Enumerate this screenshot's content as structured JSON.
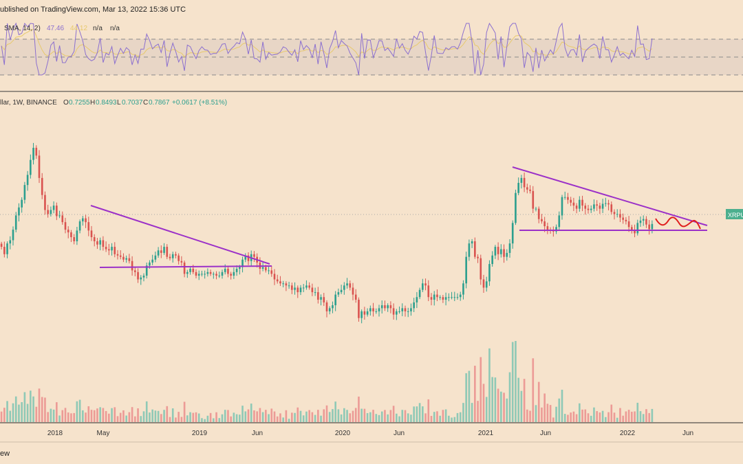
{
  "header": {
    "published": "ublished on TradingView.com, Mar 13, 2022 15:36 UTC",
    "footer": "ew"
  },
  "rsi": {
    "label_prefix": "SMA, 14, 2)",
    "value": "47.46",
    "sma_value": "44.12",
    "na1": "n/a",
    "na2": "n/a",
    "line_color": "#8b6fcf",
    "sma_color": "#e7c96d"
  },
  "price_legend": {
    "symbol": "llar, 1W, BINANCE",
    "open_label": "O",
    "open": "0.7255",
    "high_label": "H",
    "high": "0.8493",
    "low_label": "L",
    "low": "0.7037",
    "close_label": "C",
    "close": "0.7867",
    "change": "+0.0617 (+8.51%)",
    "badge": "XRPU"
  },
  "colors": {
    "background": "#f6e3cc",
    "bull": "#2c9f8e",
    "bear": "#d9534f",
    "trendline": "#9b30c8",
    "projection": "#e01e1e",
    "bull_volume": "#8fc9b6",
    "bear_volume": "#ec9b96"
  },
  "x_axis": [
    "2018",
    "May",
    "2019",
    "Jun",
    "2020",
    "Jun",
    "2021",
    "Jun",
    "2022",
    "Jun"
  ],
  "chart_data": {
    "type": "candlestick",
    "symbol": "XRP/USD",
    "timeframe": "1W",
    "exchange": "BINANCE",
    "x_ticks": [
      "2018",
      "May",
      "2019",
      "Jun",
      "2020",
      "Jun",
      "2021",
      "Jun",
      "2022",
      "Jun"
    ],
    "last_bar": {
      "open": 0.7255,
      "high": 0.8493,
      "low": 0.7037,
      "close": 0.7867,
      "change": 0.0617,
      "change_pct": 8.51
    },
    "rsi": {
      "length": 14,
      "value": 47.46,
      "sma": 44.12
    },
    "candle_closes": [
      0.55,
      0.49,
      0.58,
      0.61,
      0.72,
      0.9,
      1.02,
      1.15,
      1.45,
      1.7,
      2.15,
      2.6,
      2.3,
      1.62,
      1.24,
      0.98,
      0.92,
      0.98,
      1.05,
      0.89,
      0.9,
      0.81,
      0.72,
      0.69,
      0.64,
      0.6,
      0.71,
      0.82,
      0.86,
      0.81,
      0.71,
      0.64,
      0.6,
      0.57,
      0.61,
      0.55,
      0.53,
      0.52,
      0.55,
      0.49,
      0.48,
      0.47,
      0.45,
      0.46,
      0.44,
      0.38,
      0.37,
      0.33,
      0.34,
      0.35,
      0.41,
      0.43,
      0.45,
      0.48,
      0.52,
      0.5,
      0.55,
      0.47,
      0.46,
      0.49,
      0.48,
      0.44,
      0.43,
      0.36,
      0.37,
      0.39,
      0.37,
      0.35,
      0.36,
      0.36,
      0.36,
      0.37,
      0.36,
      0.36,
      0.35,
      0.35,
      0.37,
      0.39,
      0.36,
      0.35,
      0.37,
      0.39,
      0.4,
      0.45,
      0.48,
      0.44,
      0.49,
      0.47,
      0.43,
      0.39,
      0.4,
      0.38,
      0.38,
      0.36,
      0.33,
      0.32,
      0.31,
      0.31,
      0.3,
      0.3,
      0.28,
      0.29,
      0.27,
      0.29,
      0.29,
      0.3,
      0.29,
      0.27,
      0.27,
      0.24,
      0.25,
      0.23,
      0.2,
      0.21,
      0.22,
      0.26,
      0.27,
      0.28,
      0.3,
      0.31,
      0.29,
      0.26,
      0.24,
      0.18,
      0.2,
      0.19,
      0.2,
      0.21,
      0.2,
      0.2,
      0.21,
      0.22,
      0.21,
      0.22,
      0.21,
      0.19,
      0.2,
      0.2,
      0.21,
      0.2,
      0.2,
      0.21,
      0.23,
      0.25,
      0.28,
      0.31,
      0.3,
      0.25,
      0.24,
      0.26,
      0.25,
      0.25,
      0.24,
      0.25,
      0.25,
      0.25,
      0.25,
      0.25,
      0.26,
      0.31,
      0.47,
      0.58,
      0.6,
      0.47,
      0.46,
      0.33,
      0.29,
      0.32,
      0.42,
      0.48,
      0.55,
      0.49,
      0.53,
      0.47,
      0.5,
      0.58,
      0.8,
      1.28,
      1.5,
      1.62,
      1.4,
      1.35,
      1.32,
      1.0,
      1.0,
      0.85,
      0.82,
      0.76,
      0.72,
      0.71,
      0.7,
      0.75,
      0.9,
      1.2,
      1.2,
      1.15,
      1.1,
      1.05,
      1.0,
      1.15,
      1.05,
      1.0,
      0.98,
      1.0,
      1.07,
      1.05,
      1.0,
      1.08,
      1.09,
      1.07,
      0.95,
      0.92,
      0.92,
      0.87,
      0.84,
      0.82,
      0.75,
      0.72,
      0.68,
      0.8,
      0.83,
      0.85,
      0.78,
      0.7255,
      0.7867
    ],
    "trendlines": [
      {
        "kind": "descending resistance",
        "from": [
          0.98,
          "2018 May"
        ],
        "to": [
          0.38,
          "2019 Jun"
        ]
      },
      {
        "kind": "horizontal support",
        "value": 0.29
      },
      {
        "kind": "descending resistance",
        "from": [
          1.96,
          "2021 Apr"
        ],
        "to": [
          0.62,
          "2022 Jun"
        ]
      },
      {
        "kind": "horizontal support",
        "value": 0.55
      }
    ]
  }
}
